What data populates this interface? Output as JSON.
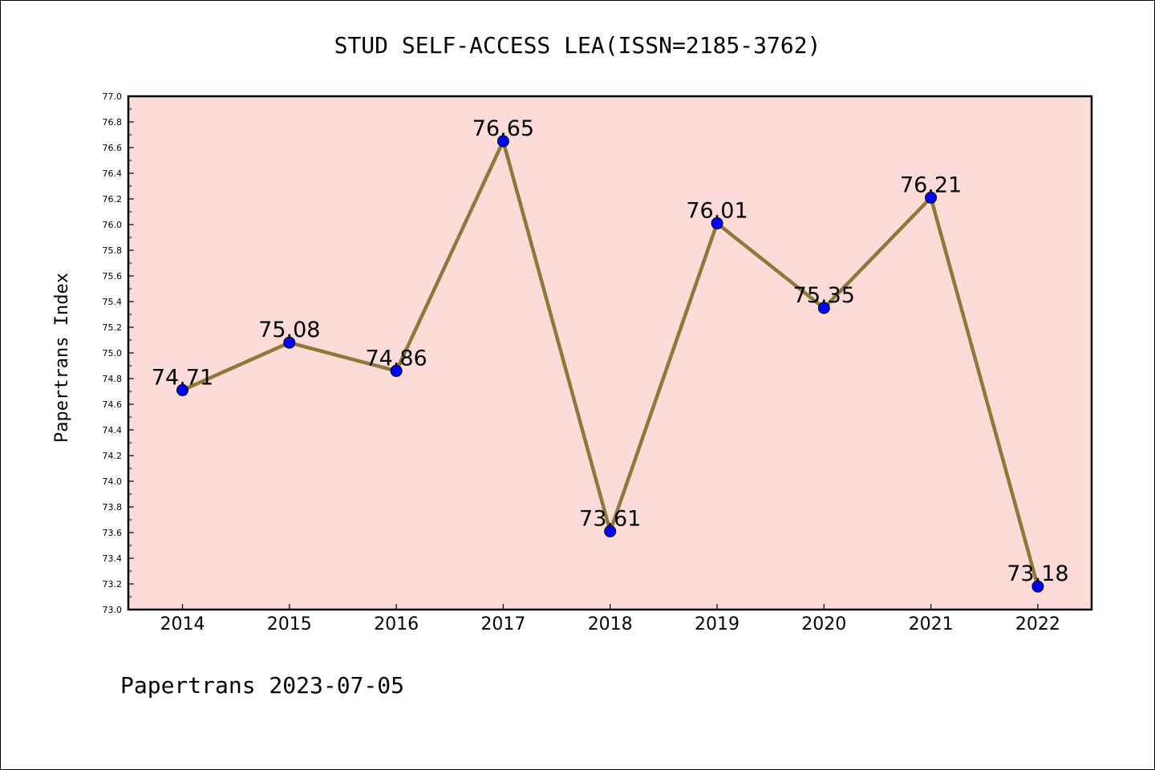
{
  "chart_data": {
    "type": "line",
    "title": "STUD SELF-ACCESS LEA(ISSN=2185-3762)",
    "xlabel": "",
    "ylabel": "Papertrans Index",
    "categories": [
      "2014",
      "2015",
      "2016",
      "2017",
      "2018",
      "2019",
      "2020",
      "2021",
      "2022"
    ],
    "series": [
      {
        "values": [
          74.71,
          75.08,
          74.86,
          76.65,
          73.61,
          76.01,
          75.35,
          76.21,
          73.18
        ],
        "data_labels": [
          "74.71",
          "75.08",
          "74.86",
          "76.65",
          "73.61",
          "76.01",
          "75.35",
          "76.21",
          "73.18"
        ]
      }
    ],
    "ylim": [
      73.0,
      77.0
    ],
    "yticks": [
      "73.0",
      "73.2",
      "73.4",
      "73.6",
      "73.8",
      "74.0",
      "74.2",
      "74.4",
      "74.6",
      "74.8",
      "75.0",
      "75.2",
      "75.4",
      "75.6",
      "75.8",
      "76.0",
      "76.2",
      "76.4",
      "76.6",
      "76.8",
      "77.0"
    ],
    "grid": false,
    "footer": "Papertrans 2023-07-05",
    "colors": {
      "plot_background": "#fddbd8",
      "line": "#8b7a3a",
      "marker": "#0000ff",
      "axes": "#000000"
    }
  }
}
